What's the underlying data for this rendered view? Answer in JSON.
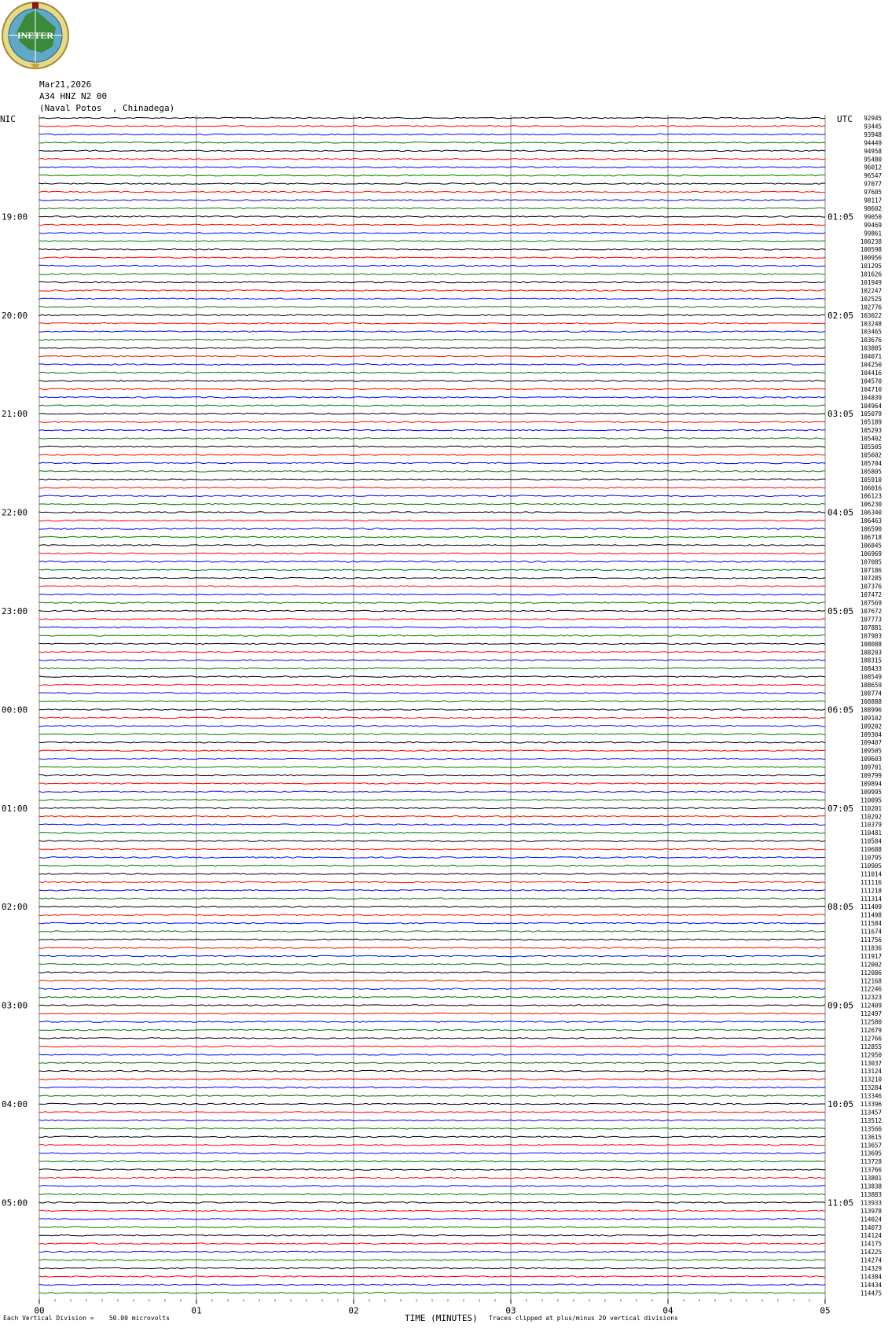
{
  "header": {
    "date": "Mar21,2026",
    "station": "A34 HNZ N2 00",
    "location": "(Naval Potos  , Chinadega)",
    "logo_text": "INETER",
    "left_zone": "NIC",
    "right_zone": "UTC"
  },
  "footer": {
    "scale": "Each Vertical Division =    50.00 microvolts",
    "x_title": "TIME (MINUTES)",
    "clip_note": "Traces clipped at plus/minus 20 vertical divisions"
  },
  "colors": {
    "black": "#000000",
    "red": "#ff0000",
    "blue": "#0000ff",
    "green": "#007a00",
    "grid": "#808080"
  },
  "chart_data": {
    "type": "line",
    "trace_color_cycle": [
      "black",
      "red",
      "blue",
      "green"
    ],
    "x_ticks": [
      "00",
      "01",
      "02",
      "03",
      "04",
      "05"
    ],
    "xlim": [
      0,
      5
    ],
    "left_hour_labels": [
      "19:00",
      "20:00",
      "21:00",
      "22:00",
      "23:00",
      "00:00",
      "01:00",
      "02:00",
      "03:00",
      "04:00",
      "05:00"
    ],
    "right_hour_labels": [
      "01:05",
      "02:05",
      "03:05",
      "04:05",
      "05:05",
      "06:05",
      "07:05",
      "08:05",
      "09:05",
      "10:05",
      "11:05"
    ],
    "trace_counts": [
      "92945",
      "93445",
      "93948",
      "94449",
      "94958",
      "95480",
      "96012",
      "96547",
      "97077",
      "97605",
      "98117",
      "98602",
      "99050",
      "99469",
      "99861",
      "100238",
      "100598",
      "100956",
      "101295",
      "101626",
      "101949",
      "102247",
      "102525",
      "102776",
      "103022",
      "103248",
      "103465",
      "103676",
      "103885",
      "104071",
      "104250",
      "104416",
      "104570",
      "104710",
      "104839",
      "104964",
      "105079",
      "105189",
      "105293",
      "105402",
      "105505",
      "105602",
      "105704",
      "105805",
      "105910",
      "106016",
      "106123",
      "106230",
      "106340",
      "106463",
      "106590",
      "106718",
      "106845",
      "106969",
      "107085",
      "107186",
      "107285",
      "107376",
      "107472",
      "107569",
      "107672",
      "107773",
      "107881",
      "107983",
      "108088",
      "108203",
      "108315",
      "108433",
      "108549",
      "108659",
      "108774",
      "108888",
      "108996",
      "109102",
      "109202",
      "109304",
      "109407",
      "109505",
      "109603",
      "109701",
      "109799",
      "109894",
      "109995",
      "110095",
      "110201",
      "110292",
      "110379",
      "110481",
      "110584",
      "110688",
      "110795",
      "110905",
      "111014",
      "111116",
      "111218",
      "111314",
      "111409",
      "111498",
      "111584",
      "111674",
      "111756",
      "111836",
      "111917",
      "112002",
      "112086",
      "112168",
      "112246",
      "112323",
      "112409",
      "112497",
      "112580",
      "112679",
      "112766",
      "112855",
      "112950",
      "113037",
      "113124",
      "113210",
      "113284",
      "113346",
      "113396",
      "113457",
      "113512",
      "113566",
      "113615",
      "113657",
      "113695",
      "113728",
      "113766",
      "113801",
      "113838",
      "113883",
      "113933",
      "113978",
      "114024",
      "114073",
      "114124",
      "114175",
      "114225",
      "114274",
      "114329",
      "114384",
      "114434",
      "114475"
    ]
  }
}
